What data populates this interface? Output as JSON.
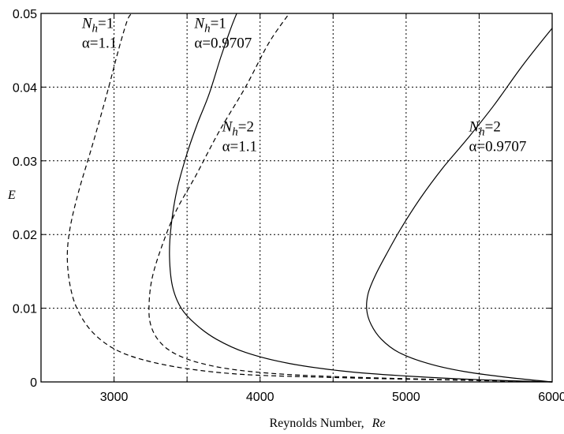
{
  "chart_data": {
    "type": "line",
    "xlabel": "Reynolds Number,",
    "xlabel_var": "Re",
    "ylabel": "E",
    "xlim": [
      2500,
      6000
    ],
    "ylim": [
      0,
      0.05
    ],
    "xticks": [
      3000,
      4000,
      5000,
      6000
    ],
    "xtick_labels": [
      "3000",
      "4000",
      "5000",
      "6000"
    ],
    "xgrid": [
      3000,
      3500,
      4000,
      4500,
      5000,
      5500
    ],
    "yticks": [
      0,
      0.01,
      0.02,
      0.03,
      0.04,
      0.05
    ],
    "ytick_labels": [
      "0",
      "0.01",
      "0.02",
      "0.03",
      "0.04",
      "0.05"
    ],
    "grid": true,
    "series": [
      {
        "name": "N_h=1, α=1.1",
        "style": "dashed",
        "x": [
          6000,
          5200,
          4500,
          3900,
          3500,
          3200,
          3000,
          2850,
          2750,
          2700,
          2680,
          2700,
          2760,
          2850,
          2950,
          3030,
          3090,
          3120
        ],
        "y": [
          0,
          0.0003,
          0.0006,
          0.001,
          0.0018,
          0.003,
          0.0045,
          0.0068,
          0.0098,
          0.013,
          0.017,
          0.021,
          0.026,
          0.032,
          0.039,
          0.045,
          0.049,
          0.05
        ]
      },
      {
        "name": "N_h=1, α=0.9707",
        "style": "solid",
        "x": [
          6000,
          5500,
          5000,
          4600,
          4200,
          3900,
          3700,
          3560,
          3460,
          3400,
          3380,
          3390,
          3430,
          3500,
          3570,
          3650,
          3730,
          3800,
          3840
        ],
        "y": [
          0,
          0.0003,
          0.0008,
          0.0014,
          0.0025,
          0.004,
          0.0058,
          0.0078,
          0.01,
          0.013,
          0.017,
          0.021,
          0.026,
          0.031,
          0.035,
          0.039,
          0.044,
          0.048,
          0.05
        ]
      },
      {
        "name": "N_h=2, α=1.1",
        "style": "dashed",
        "x": [
          6000,
          5300,
          4700,
          4200,
          3850,
          3600,
          3420,
          3310,
          3250,
          3240,
          3260,
          3320,
          3420,
          3560,
          3720,
          3900,
          4060,
          4200
        ],
        "y": [
          0,
          0.0003,
          0.0006,
          0.001,
          0.0016,
          0.0025,
          0.0038,
          0.0055,
          0.0078,
          0.0105,
          0.014,
          0.018,
          0.023,
          0.028,
          0.034,
          0.04,
          0.046,
          0.05
        ]
      },
      {
        "name": "N_h=2, α=0.9707",
        "style": "solid",
        "x": [
          6000,
          5700,
          5400,
          5150,
          4950,
          4830,
          4760,
          4730,
          4740,
          4790,
          4870,
          4970,
          5100,
          5250,
          5420,
          5600,
          5800,
          6000
        ],
        "y": [
          0,
          0.0006,
          0.0014,
          0.0025,
          0.004,
          0.0058,
          0.0078,
          0.0098,
          0.012,
          0.0145,
          0.0175,
          0.021,
          0.025,
          0.029,
          0.033,
          0.0375,
          0.043,
          0.048
        ]
      }
    ],
    "annotations": [
      {
        "sym": "N",
        "sub": "h",
        "eq": "=1",
        "alpha": "α=1.1",
        "x": 2780,
        "y": 0.048
      },
      {
        "sym": "N",
        "sub": "h",
        "eq": "=1",
        "alpha": "α=0.9707",
        "x": 3550,
        "y": 0.048
      },
      {
        "sym": "N",
        "sub": "h",
        "eq": "=2",
        "alpha": "α=1.1",
        "x": 3740,
        "y": 0.034
      },
      {
        "sym": "N",
        "sub": "h",
        "eq": "=2",
        "alpha": "α=0.9707",
        "x": 5430,
        "y": 0.034
      }
    ]
  }
}
